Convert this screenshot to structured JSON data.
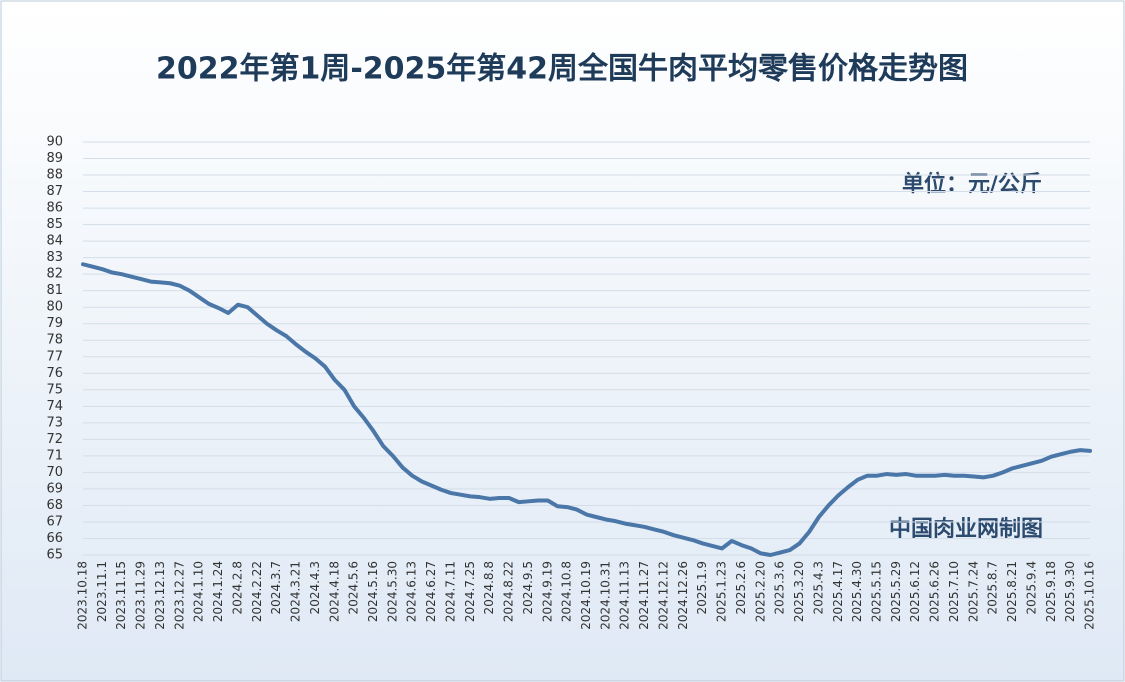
{
  "chart_data": {
    "type": "line",
    "title": "2022年第1周-2025年第42周全国牛肉平均零售价格走势图",
    "annotations": [
      "单位：元/公斤",
      "中国肉业网制图"
    ],
    "categories": [
      "2023.10.18",
      null,
      "2023.11.1",
      null,
      "2023.11.15",
      null,
      "2023.11.29",
      null,
      "2023.12.13",
      null,
      "2023.12.27",
      null,
      "2024.1.10",
      null,
      "2024.1.24",
      null,
      "2024.2.8",
      null,
      "2024.2.22",
      null,
      "2024.3.7",
      null,
      "2024.3.21",
      null,
      "2024.4.3",
      null,
      "2024.4.18",
      null,
      "2024.5.6",
      null,
      "2024.5.16",
      null,
      "2024.5.30",
      null,
      "2024.6.13",
      null,
      "2024.6.27",
      null,
      "2024.7.11",
      null,
      "2024.7.25",
      null,
      "2024.8.8",
      null,
      "2024.8.22",
      null,
      "2024.9.5",
      null,
      "2024.9.19",
      null,
      "2024.10.8",
      null,
      "2024.10.19",
      null,
      "2024.10.31",
      null,
      "2024.11.13",
      null,
      "2024.11.27",
      null,
      "2024.12.12",
      null,
      "2024.12.26",
      null,
      "2025.1.9",
      null,
      "2025.1.23",
      null,
      "2025.2.6",
      null,
      "2025.2.20",
      null,
      "2025.3.6",
      null,
      "2025.3.20",
      null,
      "2025.4.3",
      null,
      "2025.4.17",
      null,
      "2025.4.30",
      null,
      "2025.5.15",
      null,
      "2025.5.29",
      null,
      "2025.6.12",
      null,
      "2025.6.26",
      null,
      "2025.7.10",
      null,
      "2025.7.24",
      null,
      "2025.8.7",
      null,
      "2025.8.21",
      null,
      "2025.9.4",
      null,
      "2025.9.18",
      null,
      "2025.9.30",
      null,
      "2025.10.16"
    ],
    "values": [
      82.6,
      82.45,
      82.3,
      82.1,
      82.0,
      81.85,
      81.7,
      81.55,
      81.5,
      81.45,
      81.3,
      81.0,
      80.6,
      80.2,
      79.95,
      79.65,
      80.15,
      80.0,
      79.5,
      79.0,
      78.6,
      78.25,
      77.75,
      77.3,
      76.9,
      76.4,
      75.6,
      75.0,
      74.0,
      73.3,
      72.5,
      71.6,
      71.0,
      70.3,
      69.8,
      69.45,
      69.2,
      68.95,
      68.75,
      68.65,
      68.55,
      68.5,
      68.4,
      68.45,
      68.45,
      68.2,
      68.25,
      68.3,
      68.3,
      67.95,
      67.9,
      67.75,
      67.45,
      67.3,
      67.15,
      67.05,
      66.9,
      66.8,
      66.7,
      66.55,
      66.4,
      66.2,
      66.05,
      65.9,
      65.7,
      65.55,
      65.4,
      65.85,
      65.6,
      65.4,
      65.1,
      65.0,
      65.15,
      65.3,
      65.7,
      66.4,
      67.3,
      68.0,
      68.6,
      69.1,
      69.55,
      69.8,
      69.8,
      69.9,
      69.85,
      69.9,
      69.8,
      69.8,
      69.8,
      69.85,
      69.8,
      69.8,
      69.75,
      69.7,
      69.8,
      70.0,
      70.25,
      70.4,
      70.55,
      70.7,
      70.95,
      71.1,
      71.25,
      71.35,
      71.3
    ],
    "color": "#4a76a8",
    "ylim": [
      65,
      90
    ],
    "yticks": [
      65,
      66,
      67,
      68,
      69,
      70,
      71,
      72,
      73,
      74,
      75,
      76,
      77,
      78,
      79,
      80,
      81,
      82,
      83,
      84,
      85,
      86,
      87,
      88,
      89,
      90
    ],
    "grid": true
  }
}
